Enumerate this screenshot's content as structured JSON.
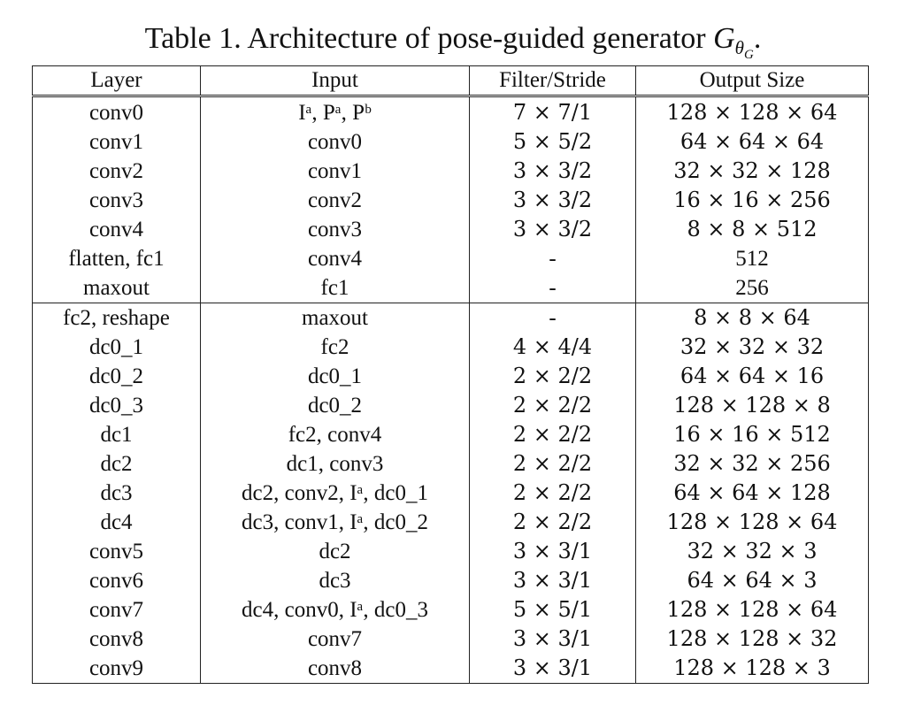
{
  "caption": {
    "prefix": "Table 1. Architecture of pose-guided generator ",
    "symbol": "G",
    "subscript": "θ",
    "subsubscript": "G",
    "suffix": "."
  },
  "table": {
    "headers": [
      "Layer",
      "Input",
      "Filter/Stride",
      "Output Size"
    ],
    "rows": [
      {
        "layer": "conv0",
        "input": "Iᵃ, Pᵃ, Pᵇ",
        "filter": "7 × 7/1",
        "output": "128 × 128 × 64"
      },
      {
        "layer": "conv1",
        "input": "conv0",
        "filter": "5 × 5/2",
        "output": "64 × 64 × 64"
      },
      {
        "layer": "conv2",
        "input": "conv1",
        "filter": "3 × 3/2",
        "output": "32 × 32 × 128"
      },
      {
        "layer": "conv3",
        "input": "conv2",
        "filter": "3 × 3/2",
        "output": "16 × 16 × 256"
      },
      {
        "layer": "conv4",
        "input": "conv3",
        "filter": "3 × 3/2",
        "output": "8 × 8 × 512"
      },
      {
        "layer": "flatten, fc1",
        "input": "conv4",
        "filter": "-",
        "output": "512"
      },
      {
        "layer": "maxout",
        "input": "fc1",
        "filter": "-",
        "output": "256"
      },
      {
        "layer": "fc2, reshape",
        "input": "maxout",
        "filter": "-",
        "output": "8 × 8 × 64"
      },
      {
        "layer": "dc0_1",
        "input": "fc2",
        "filter": "4 × 4/4",
        "output": "32 × 32 × 32"
      },
      {
        "layer": "dc0_2",
        "input": "dc0_1",
        "filter": "2 × 2/2",
        "output": "64 × 64 × 16"
      },
      {
        "layer": "dc0_3",
        "input": "dc0_2",
        "filter": "2 × 2/2",
        "output": "128 × 128 × 8"
      },
      {
        "layer": "dc1",
        "input": "fc2, conv4",
        "filter": "2 × 2/2",
        "output": "16 × 16 × 512"
      },
      {
        "layer": "dc2",
        "input": "dc1, conv3",
        "filter": "2 × 2/2",
        "output": "32 × 32 × 256"
      },
      {
        "layer": "dc3",
        "input": "dc2, conv2, Iᵃ, dc0_1",
        "filter": "2 × 2/2",
        "output": "64 × 64 × 128"
      },
      {
        "layer": "dc4",
        "input": "dc3, conv1, Iᵃ, dc0_2",
        "filter": "2 × 2/2",
        "output": "128 × 128 × 64"
      },
      {
        "layer": "conv5",
        "input": "dc2",
        "filter": "3 × 3/1",
        "output": "32 × 32 × 3"
      },
      {
        "layer": "conv6",
        "input": "dc3",
        "filter": "3 × 3/1",
        "output": "64 × 64 × 3"
      },
      {
        "layer": "conv7",
        "input": "dc4, conv0, Iᵃ, dc0_3",
        "filter": "5 × 5/1",
        "output": "128 × 128 × 64"
      },
      {
        "layer": "conv8",
        "input": "conv7",
        "filter": "3 × 3/1",
        "output": "128 × 128 × 32"
      },
      {
        "layer": "conv9",
        "input": "conv8",
        "filter": "3 × 3/1",
        "output": "128 × 128 × 3"
      }
    ]
  }
}
